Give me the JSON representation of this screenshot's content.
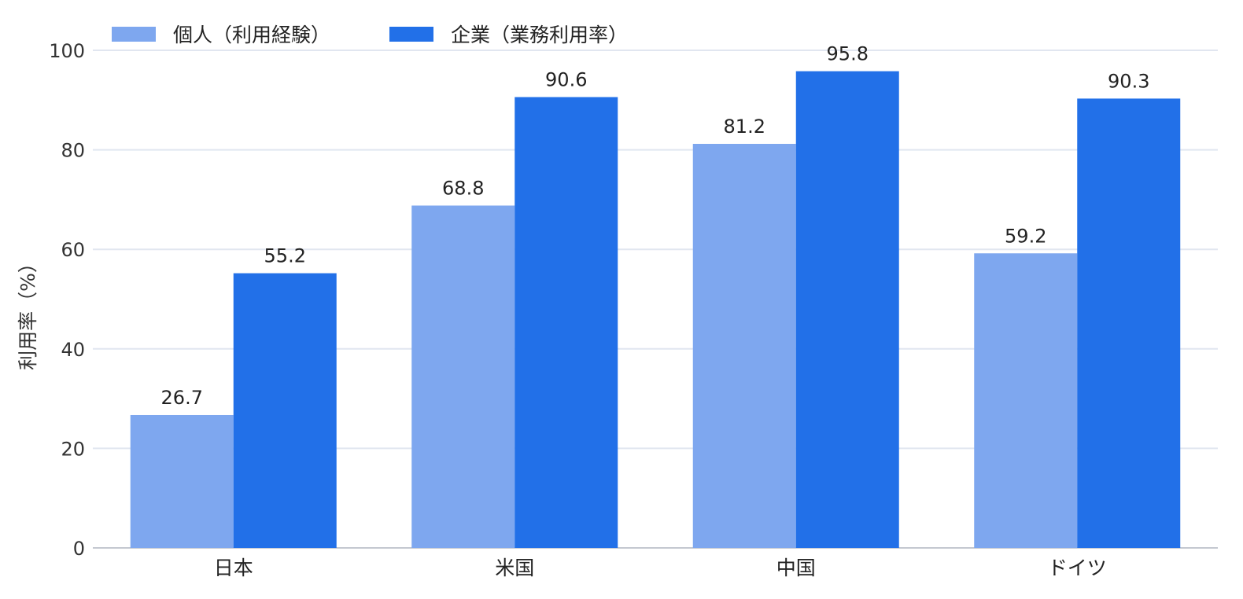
{
  "chart_data": {
    "type": "bar",
    "title": "",
    "xlabel": "",
    "ylabel": "利用率（%）",
    "ylim": [
      0,
      100
    ],
    "yticks": [
      0,
      20,
      40,
      60,
      80,
      100
    ],
    "grid": true,
    "legend_position": "top-left",
    "categories": [
      "日本",
      "米国",
      "中国",
      "ドイツ"
    ],
    "series": [
      {
        "name": "個人（利用経験）",
        "color": "#7ea7ef",
        "values": [
          26.7,
          68.8,
          81.2,
          59.2
        ]
      },
      {
        "name": "企業（業務利用率）",
        "color": "#2270e8",
        "values": [
          55.2,
          90.6,
          95.8,
          90.3
        ]
      }
    ]
  }
}
